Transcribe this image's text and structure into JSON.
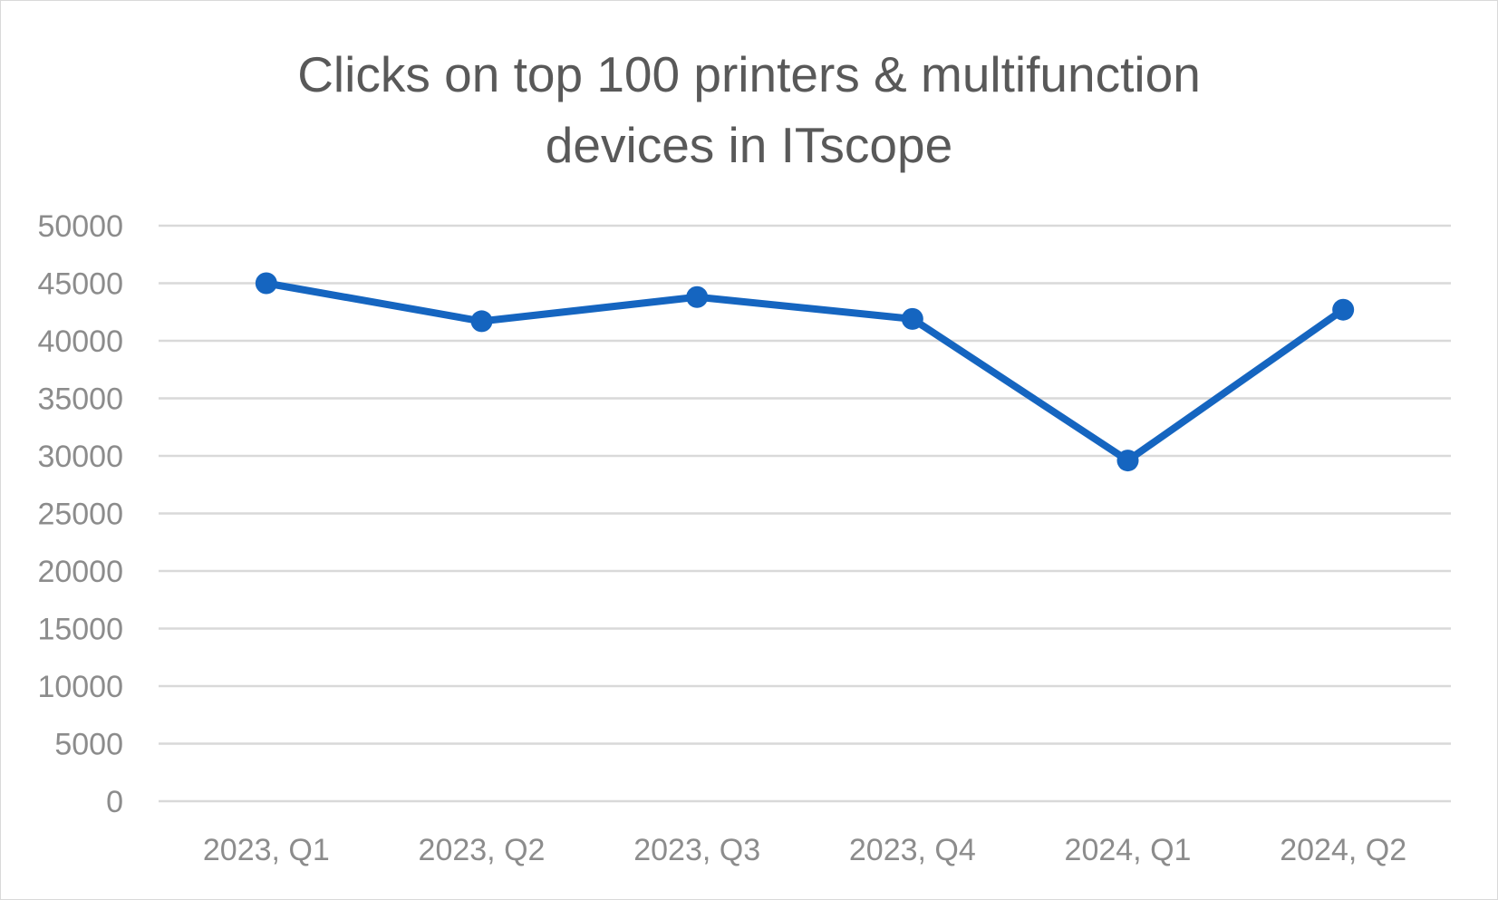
{
  "chart_data": {
    "type": "line",
    "title": "Clicks on top 100 printers & multifunction\ndevices in ITscope",
    "categories": [
      "2023, Q1",
      "2023, Q2",
      "2023, Q3",
      "2023, Q4",
      "2024, Q1",
      "2024, Q2"
    ],
    "series": [
      {
        "values": [
          45000,
          41700,
          43800,
          41900,
          29600,
          42700
        ],
        "color": "#1565c0"
      }
    ],
    "y_ticks": [
      "0",
      "5000",
      "10000",
      "15000",
      "20000",
      "25000",
      "30000",
      "35000",
      "40000",
      "45000",
      "50000"
    ],
    "ylim": [
      0,
      50000
    ],
    "ystep": 5000,
    "grid": true,
    "legend": "none",
    "colors": {
      "gridline": "#d9d9d9",
      "tick_text": "#8c8c8c",
      "title_text": "#595959"
    }
  }
}
